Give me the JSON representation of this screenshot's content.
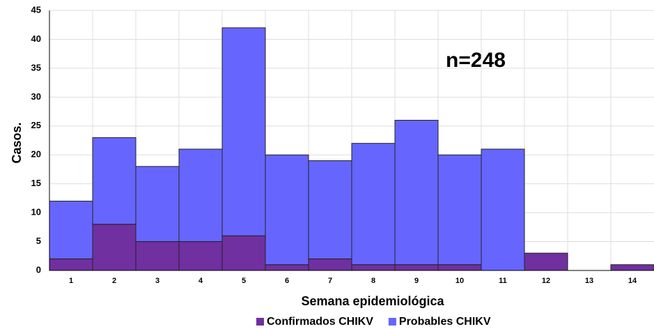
{
  "chart_data": {
    "type": "stacked_bar",
    "annotation": "n=248",
    "y_label": "Casos.",
    "x_label": "Semana epidemiológica",
    "categories": [
      "1",
      "2",
      "3",
      "4",
      "5",
      "6",
      "7",
      "8",
      "9",
      "10",
      "11",
      "12",
      "13",
      "14"
    ],
    "series": [
      {
        "name": "Confirmados CHIKV",
        "color": "#7030a0",
        "values": [
          2,
          8,
          5,
          5,
          6,
          1,
          2,
          1,
          1,
          1,
          0,
          3,
          0,
          1
        ]
      },
      {
        "name": "Probables CHIKV",
        "color": "#6666ff",
        "values": [
          10,
          15,
          13,
          16,
          36,
          19,
          17,
          21,
          25,
          19,
          21,
          0,
          0,
          0
        ]
      }
    ],
    "ylim": [
      0,
      45
    ],
    "yticks": [
      0,
      5,
      10,
      15,
      20,
      25,
      30,
      35,
      40,
      45
    ],
    "grid": true
  }
}
